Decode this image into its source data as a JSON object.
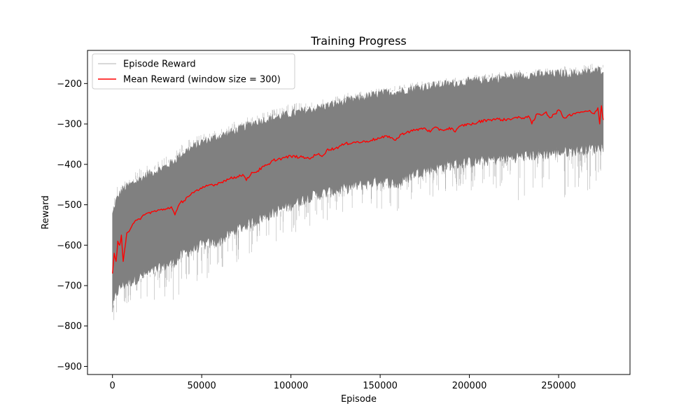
{
  "chart_data": {
    "type": "line",
    "title": "Training Progress",
    "xlabel": "Episode",
    "ylabel": "Reward",
    "xlim": [
      -14000,
      290000
    ],
    "ylim": [
      -920,
      -118
    ],
    "xticks": [
      0,
      50000,
      100000,
      150000,
      200000,
      250000
    ],
    "xtick_labels": [
      "0",
      "50000",
      "100000",
      "150000",
      "200000",
      "250000"
    ],
    "yticks": [
      -900,
      -800,
      -700,
      -600,
      -500,
      -400,
      -300,
      -200
    ],
    "ytick_labels": [
      "−900",
      "−800",
      "−700",
      "−600",
      "−500",
      "−400",
      "−300",
      "−200"
    ],
    "grid": false,
    "legend_position": "top-left",
    "series": [
      {
        "name": "Episode Reward",
        "color": "#808080",
        "style": "band",
        "x": [
          0,
          2000,
          5000,
          10000,
          20000,
          30000,
          35000,
          40000,
          50000,
          60000,
          70000,
          80000,
          90000,
          100000,
          110000,
          120000,
          130000,
          140000,
          150000,
          160000,
          170000,
          180000,
          190000,
          200000,
          210000,
          220000,
          230000,
          240000,
          250000,
          260000,
          270000,
          275000
        ],
        "upper": [
          -525,
          -490,
          -465,
          -450,
          -425,
          -405,
          -390,
          -370,
          -345,
          -330,
          -315,
          -295,
          -285,
          -275,
          -265,
          -255,
          -245,
          -235,
          -225,
          -220,
          -210,
          -205,
          -200,
          -195,
          -190,
          -185,
          -180,
          -178,
          -175,
          -175,
          -170,
          -165
        ],
        "lower": [
          -760,
          -720,
          -700,
          -690,
          -670,
          -650,
          -640,
          -620,
          -600,
          -590,
          -560,
          -540,
          -520,
          -500,
          -480,
          -470,
          -460,
          -450,
          -440,
          -450,
          -420,
          -410,
          -400,
          -395,
          -390,
          -385,
          -380,
          -375,
          -370,
          -365,
          -360,
          -355
        ],
        "spike_max": [
          -480,
          -460,
          -430,
          -420,
          -400,
          -380,
          -365,
          -345,
          -325,
          -310,
          -290,
          -275,
          -260,
          -250,
          -245,
          -235,
          -225,
          -215,
          -210,
          -205,
          -195,
          -190,
          -185,
          -180,
          -175,
          -170,
          -165,
          -160,
          -158,
          -155,
          -150,
          -150
        ],
        "spike_min": [
          -880,
          -790,
          -770,
          -740,
          -740,
          -730,
          -745,
          -700,
          -690,
          -680,
          -640,
          -620,
          -600,
          -570,
          -560,
          -540,
          -520,
          -520,
          -510,
          -520,
          -490,
          -480,
          -470,
          -470,
          -460,
          -460,
          -500,
          -460,
          -490,
          -470,
          -470,
          -470
        ]
      },
      {
        "name": "Mean Reward (window size = 300)",
        "color": "#ff0000",
        "style": "line",
        "x": [
          0,
          1000,
          2000,
          3000,
          4000,
          5000,
          6000,
          8000,
          10000,
          12000,
          15000,
          18000,
          20000,
          25000,
          30000,
          33000,
          35000,
          38000,
          40000,
          42000,
          45000,
          48000,
          50000,
          52000,
          55000,
          58000,
          60000,
          63000,
          66000,
          70000,
          73000,
          75000,
          78000,
          80000,
          85000,
          88000,
          90000,
          95000,
          100000,
          105000,
          110000,
          115000,
          118000,
          120000,
          125000,
          130000,
          135000,
          140000,
          145000,
          150000,
          155000,
          158000,
          160000,
          162000,
          165000,
          170000,
          175000,
          178000,
          180000,
          185000,
          190000,
          192000,
          195000,
          200000,
          203000,
          205000,
          210000,
          215000,
          220000,
          225000,
          230000,
          233000,
          235000,
          238000,
          240000,
          243000,
          245000,
          248000,
          250000,
          253000,
          255000,
          258000,
          260000,
          263000,
          265000,
          268000,
          270000,
          272000,
          273000,
          274000,
          275000
        ],
        "y": [
          -670,
          -620,
          -640,
          -590,
          -600,
          -575,
          -640,
          -570,
          -560,
          -545,
          -535,
          -525,
          -520,
          -515,
          -510,
          -505,
          -525,
          -495,
          -490,
          -480,
          -470,
          -465,
          -460,
          -455,
          -450,
          -450,
          -445,
          -440,
          -435,
          -430,
          -425,
          -440,
          -420,
          -420,
          -405,
          -400,
          -390,
          -385,
          -380,
          -382,
          -385,
          -375,
          -378,
          -365,
          -360,
          -350,
          -345,
          -345,
          -340,
          -335,
          -330,
          -340,
          -335,
          -325,
          -320,
          -315,
          -310,
          -320,
          -310,
          -315,
          -310,
          -320,
          -305,
          -300,
          -300,
          -295,
          -290,
          -288,
          -290,
          -285,
          -285,
          -280,
          -300,
          -275,
          -278,
          -270,
          -285,
          -275,
          -265,
          -285,
          -280,
          -275,
          -272,
          -270,
          -268,
          -270,
          -275,
          -260,
          -300,
          -255,
          -290
        ]
      }
    ]
  }
}
